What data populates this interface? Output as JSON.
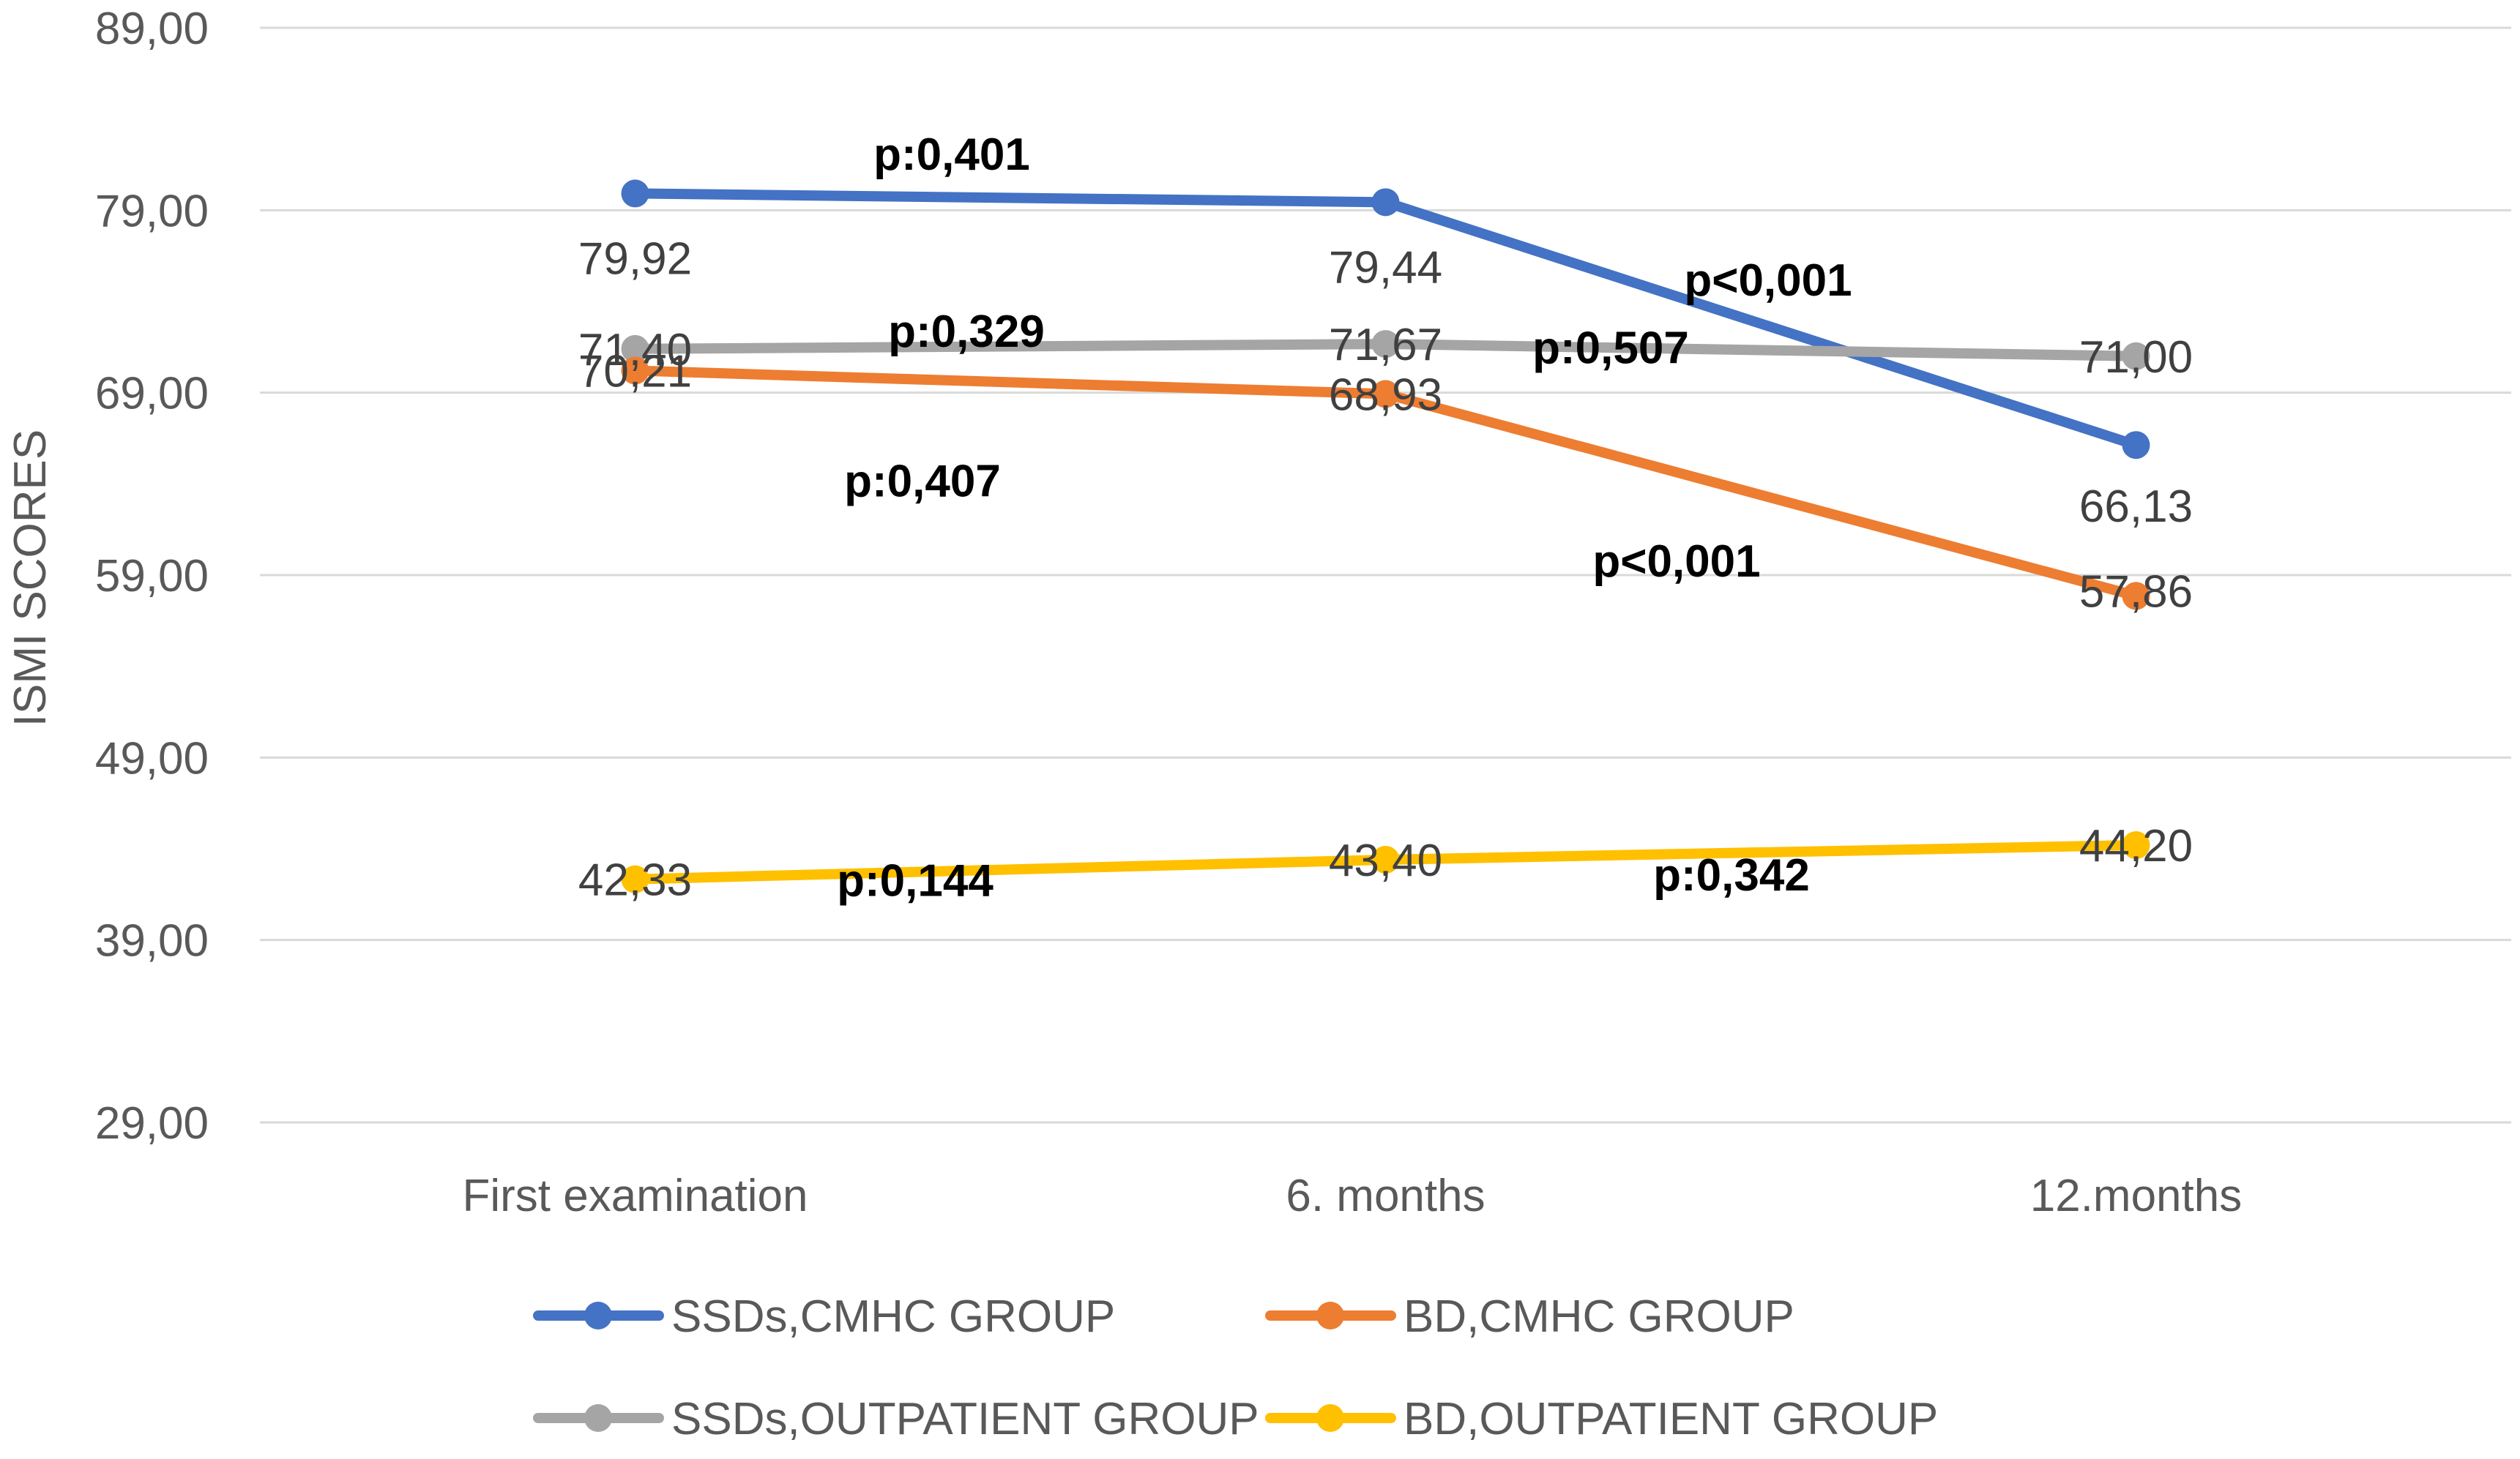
{
  "chart_data": {
    "type": "line",
    "title": "",
    "xlabel": "",
    "ylabel": "ISMI SCORES",
    "ylim": [
      29,
      89
    ],
    "yticks": [
      89,
      79,
      69,
      59,
      49,
      39,
      29
    ],
    "ytick_labels": [
      "89,00",
      "79,00",
      "69,00",
      "59,00",
      "49,00",
      "39,00",
      "29,00"
    ],
    "grid": true,
    "legend_position": "bottom",
    "categories": [
      "First examination",
      "6. months",
      "12.months"
    ],
    "series": [
      {
        "name": "SSDs,CMHC GROUP",
        "color": "#4472C4",
        "values": [
          79.92,
          79.44,
          66.13
        ],
        "labels": [
          "79,92",
          "79,44",
          "66,13"
        ]
      },
      {
        "name": "BD,CMHC GROUP",
        "color": "#ED7D31",
        "values": [
          70.21,
          68.93,
          57.86
        ],
        "labels": [
          "70,21",
          "68,93",
          "57,86"
        ]
      },
      {
        "name": "SSDs,OUTPATIENT GROUP",
        "color": "#A5A5A5",
        "values": [
          71.4,
          71.67,
          71.0
        ],
        "labels": [
          "71,40",
          "71,67",
          "71,00"
        ]
      },
      {
        "name": "BD,OUTPATIENT GROUP",
        "color": "#FFC000",
        "values": [
          42.33,
          43.4,
          44.2
        ],
        "labels": [
          "42,33",
          "43,40",
          "44,20"
        ]
      }
    ],
    "annotations": [
      {
        "text": "p:0,401",
        "series": "SSDs,CMHC GROUP",
        "segment": "First examination-6. months",
        "value": 82.1
      },
      {
        "text": "p<0,001",
        "series": "SSDs,CMHC GROUP",
        "segment": "6. months-12.months",
        "value": 75.2
      },
      {
        "text": "p:0,329",
        "series": "SSDs,OUTPATIENT GROUP",
        "segment": "First examination-6. months",
        "value": 72.4
      },
      {
        "text": "p:0,507",
        "series": "SSDs,OUTPATIENT GROUP",
        "segment": "6. months-12.months",
        "value": 71.5
      },
      {
        "text": "p:0,407",
        "series": "BD,CMHC GROUP",
        "segment": "First examination-6. months",
        "value": 64.2
      },
      {
        "text": "p<0,001",
        "series": "BD,CMHC GROUP",
        "segment": "6. months-12.months",
        "value": 59.8
      },
      {
        "text": "p:0,144",
        "series": "BD,OUTPATIENT GROUP",
        "segment": "First examination-6. months",
        "value": 42.3
      },
      {
        "text": "p:0,342",
        "series": "BD,OUTPATIENT GROUP",
        "segment": "6. months-12.months",
        "value": 42.6
      }
    ]
  }
}
